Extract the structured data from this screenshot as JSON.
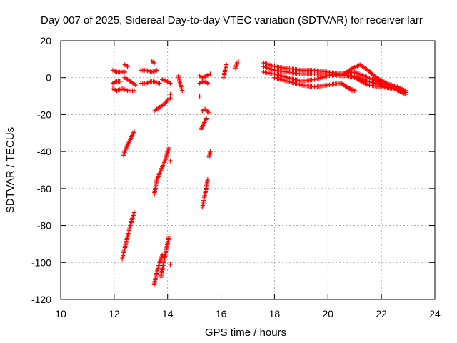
{
  "chart_data": {
    "type": "scatter",
    "title": "Day 007 of 2025, Sidereal Day-to-day VTEC variation (SDTVAR) for receiver larr",
    "xlabel": "GPS time / hours",
    "ylabel": "SDTVAR / TECUs",
    "xlim": [
      10,
      24
    ],
    "ylim": [
      -120,
      20
    ],
    "xticks": [
      "10",
      "12",
      "14",
      "16",
      "18",
      "20",
      "22",
      "24"
    ],
    "yticks": [
      "20",
      "0",
      "-20",
      "-40",
      "-60",
      "-80",
      "-100",
      "-120"
    ],
    "grid": true,
    "legend": "none",
    "marker": "plus",
    "color": "#ff0000",
    "segments": [
      {
        "x": [
          11.95,
          12.1,
          12.25,
          12.4
        ],
        "y": [
          4,
          3,
          3,
          3
        ]
      },
      {
        "x": [
          11.95,
          12.1,
          12.25
        ],
        "y": [
          -3,
          -2,
          -2
        ]
      },
      {
        "x": [
          11.95,
          12.1,
          12.3,
          12.5,
          12.75
        ],
        "y": [
          -6,
          -7,
          -6,
          -7,
          -7
        ]
      },
      {
        "x": [
          12.4,
          12.5,
          12.6,
          12.7,
          12.8
        ],
        "y": [
          0,
          -1,
          -2,
          -3,
          -4
        ]
      },
      {
        "x": [
          12.4,
          12.5
        ],
        "y": [
          7,
          6
        ]
      },
      {
        "x": [
          12.35,
          12.45,
          12.55,
          12.65,
          12.75
        ],
        "y": [
          -42,
          -38,
          -35,
          -32,
          -29
        ]
      },
      {
        "x": [
          12.3,
          12.4,
          12.5,
          12.6,
          12.75
        ],
        "y": [
          -98,
          -92,
          -86,
          -80,
          -73
        ]
      },
      {
        "x": [
          13.0,
          13.2,
          13.4,
          13.6
        ],
        "y": [
          4,
          4,
          3,
          4
        ]
      },
      {
        "x": [
          13.0,
          13.2,
          13.4,
          13.7
        ],
        "y": [
          -3,
          -3,
          -2,
          -3
        ]
      },
      {
        "x": [
          13.4,
          13.5
        ],
        "y": [
          9,
          8
        ]
      },
      {
        "x": [
          13.5,
          13.7,
          13.9,
          14.0,
          14.1
        ],
        "y": [
          -18,
          -16,
          -14,
          -12,
          -11
        ]
      },
      {
        "x": [
          13.5,
          13.6,
          13.75,
          13.9,
          14.05
        ],
        "y": [
          -63,
          -55,
          -50,
          -45,
          -38
        ]
      },
      {
        "x": [
          13.5,
          13.6,
          13.7,
          13.8
        ],
        "y": [
          -112,
          -105,
          -100,
          -96
        ]
      },
      {
        "x": [
          13.75,
          13.85,
          13.95,
          14.05
        ],
        "y": [
          -108,
          -100,
          -93,
          -86
        ]
      },
      {
        "x": [
          14.1
        ],
        "y": [
          -101
        ]
      },
      {
        "x": [
          14.1
        ],
        "y": [
          -45
        ]
      },
      {
        "x": [
          13.8,
          14.0,
          14.1
        ],
        "y": [
          -1,
          -2,
          -3
        ]
      },
      {
        "x": [
          14.1
        ],
        "y": [
          -9
        ]
      },
      {
        "x": [
          14.4,
          14.45,
          14.5,
          14.55
        ],
        "y": [
          1,
          -2,
          -5,
          -7
        ]
      },
      {
        "x": [
          15.2,
          15.3,
          15.45,
          15.6
        ],
        "y": [
          1,
          0,
          1,
          2
        ]
      },
      {
        "x": [
          15.2,
          15.35,
          15.5
        ],
        "y": [
          -3,
          -2,
          -3
        ]
      },
      {
        "x": [
          15.3,
          15.4,
          15.55
        ],
        "y": [
          -18,
          -17,
          -19
        ]
      },
      {
        "x": [
          15.25,
          15.35,
          15.45
        ],
        "y": [
          -28,
          -25,
          -22
        ]
      },
      {
        "x": [
          15.3,
          15.4,
          15.5
        ],
        "y": [
          -70,
          -63,
          -55
        ]
      },
      {
        "x": [
          15.55,
          15.6
        ],
        "y": [
          -43,
          -40
        ]
      },
      {
        "x": [
          15.2
        ],
        "y": [
          -10
        ]
      },
      {
        "x": [
          16.1,
          16.15,
          16.2
        ],
        "y": [
          0,
          4,
          7
        ]
      },
      {
        "x": [
          16.55,
          16.6,
          16.65
        ],
        "y": [
          5,
          8,
          9
        ]
      },
      {
        "x": [
          17.6,
          18.0,
          18.5,
          19.0,
          19.5,
          20.0,
          20.5,
          21.0,
          21.5,
          22.0,
          22.5,
          22.9
        ],
        "y": [
          8,
          6,
          5,
          4,
          4,
          3,
          2,
          3,
          0,
          -3,
          -5,
          -7
        ]
      },
      {
        "x": [
          17.6,
          18.0,
          18.5,
          19.0,
          19.5,
          20.0,
          20.5,
          21.0,
          21.5,
          22.0,
          22.5,
          22.9
        ],
        "y": [
          6,
          4,
          3,
          2,
          2,
          2,
          1,
          1,
          -2,
          -4,
          -6,
          -8
        ]
      },
      {
        "x": [
          17.6,
          18.0,
          18.5,
          19.0,
          19.5,
          20.0,
          20.5,
          21.0,
          21.5,
          22.0,
          22.5,
          22.9
        ],
        "y": [
          3,
          2,
          0,
          -2,
          -1,
          1,
          2,
          0,
          -4,
          -5,
          -6,
          -9
        ]
      },
      {
        "x": [
          18.0,
          18.5,
          19.0,
          19.5,
          20.0,
          20.5,
          20.9
        ],
        "y": [
          0,
          -2,
          -4,
          -5,
          -4,
          -3,
          -7
        ]
      },
      {
        "x": [
          20.6,
          20.9,
          21.2,
          21.5,
          21.8,
          22.2,
          22.6,
          22.9
        ],
        "y": [
          2,
          5,
          7,
          4,
          0,
          -3,
          -5,
          -8
        ]
      },
      {
        "x": [
          20.5,
          20.7,
          21.0
        ],
        "y": [
          -3,
          -5,
          -7
        ]
      }
    ]
  }
}
